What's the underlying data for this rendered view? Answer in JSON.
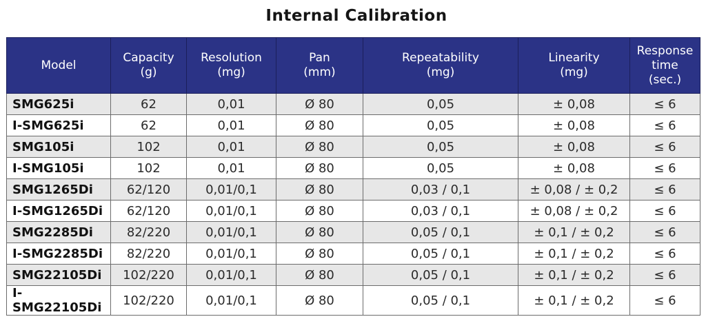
{
  "title": "Internal Calibration",
  "headers": {
    "model": "Model",
    "capacity": "Capacity\n(g)",
    "resolution": "Resolution\n(mg)",
    "pan": "Pan\n(mm)",
    "repeatability": "Repeatability\n(mg)",
    "linearity": "Linearity\n(mg)",
    "response": "Response\ntime\n(sec.)"
  },
  "rows": [
    {
      "model": "SMG625i",
      "capacity": "62",
      "resolution": "0,01",
      "pan": "Ø 80",
      "repeatability": "0,05",
      "linearity": "± 0,08",
      "response": "≤ 6"
    },
    {
      "model": "I-SMG625i",
      "capacity": "62",
      "resolution": "0,01",
      "pan": "Ø 80",
      "repeatability": "0,05",
      "linearity": "± 0,08",
      "response": "≤ 6"
    },
    {
      "model": "SMG105i",
      "capacity": "102",
      "resolution": "0,01",
      "pan": "Ø 80",
      "repeatability": "0,05",
      "linearity": "± 0,08",
      "response": "≤ 6"
    },
    {
      "model": "I-SMG105i",
      "capacity": "102",
      "resolution": "0,01",
      "pan": "Ø 80",
      "repeatability": "0,05",
      "linearity": "± 0,08",
      "response": "≤ 6"
    },
    {
      "model": "SMG1265Di",
      "capacity": "62/120",
      "resolution": "0,01/0,1",
      "pan": "Ø 80",
      "repeatability": "0,03 / 0,1",
      "linearity": "± 0,08 / ± 0,2",
      "response": "≤ 6"
    },
    {
      "model": "I-SMG1265Di",
      "capacity": "62/120",
      "resolution": "0,01/0,1",
      "pan": "Ø 80",
      "repeatability": "0,03 / 0,1",
      "linearity": "± 0,08 / ± 0,2",
      "response": "≤ 6"
    },
    {
      "model": "SMG2285Di",
      "capacity": "82/220",
      "resolution": "0,01/0,1",
      "pan": "Ø 80",
      "repeatability": "0,05 / 0,1",
      "linearity": "± 0,1 / ± 0,2",
      "response": "≤ 6"
    },
    {
      "model": "I-SMG2285Di",
      "capacity": "82/220",
      "resolution": "0,01/0,1",
      "pan": "Ø 80",
      "repeatability": "0,05 / 0,1",
      "linearity": "± 0,1 / ± 0,2",
      "response": "≤ 6"
    },
    {
      "model": "SMG22105Di",
      "capacity": "102/220",
      "resolution": "0,01/0,1",
      "pan": "Ø 80",
      "repeatability": "0,05 / 0,1",
      "linearity": "± 0,1 / ± 0,2",
      "response": "≤ 6"
    },
    {
      "model": "I-SMG22105Di",
      "capacity": "102/220",
      "resolution": "0,01/0,1",
      "pan": "Ø 80",
      "repeatability": "0,05 / 0,1",
      "linearity": "± 0,1 / ± 0,2",
      "response": "≤ 6"
    }
  ]
}
